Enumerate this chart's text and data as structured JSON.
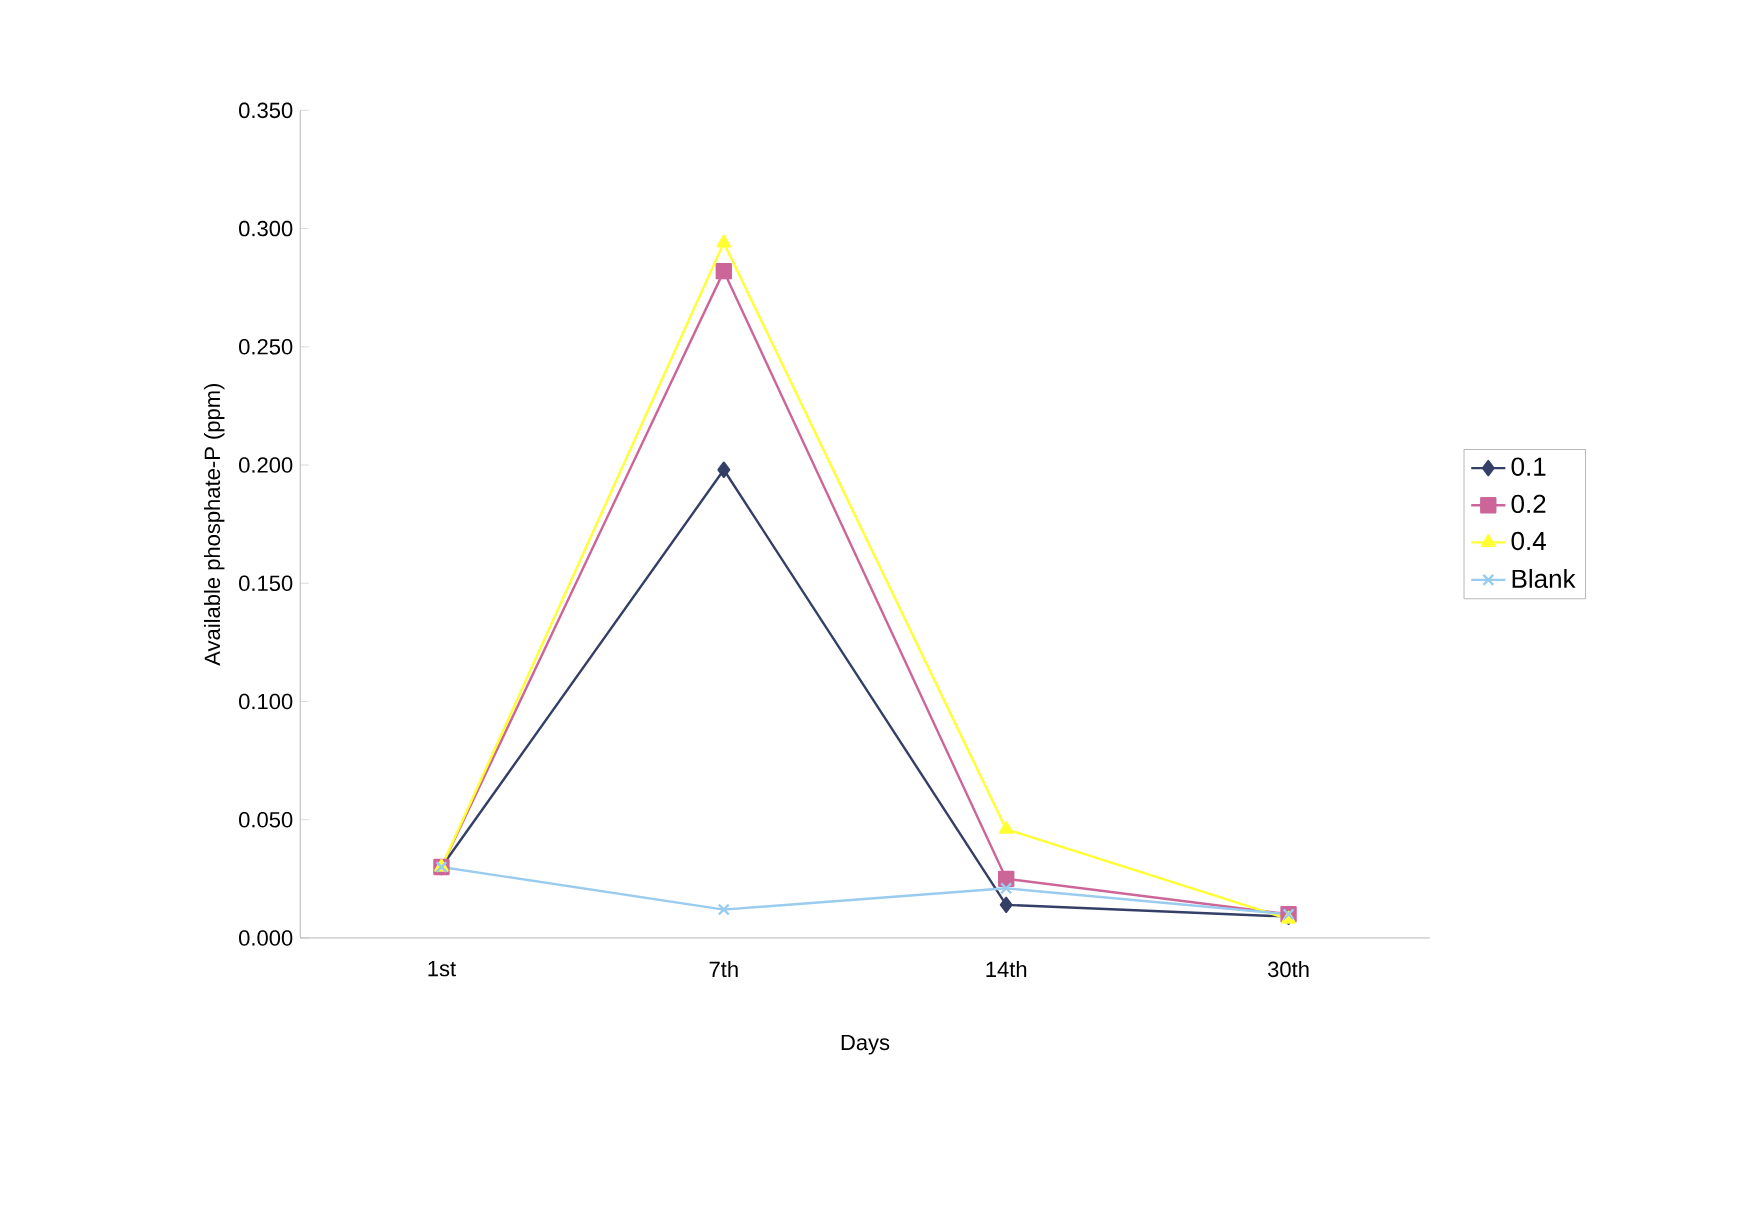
{
  "chart_data": {
    "type": "line",
    "xlabel": "Days",
    "ylabel": "Available phosphate-P (ppm)",
    "categories": [
      "1st",
      "7th",
      "14th",
      "30th"
    ],
    "ylim": [
      0,
      0.35
    ],
    "yticks": [
      {
        "value": 0,
        "label": "0.000"
      },
      {
        "value": 0.05,
        "label": "0.050"
      },
      {
        "value": 0.1,
        "label": "0.100"
      },
      {
        "value": 0.15,
        "label": "0.150"
      },
      {
        "value": 0.2,
        "label": "0.200"
      },
      {
        "value": 0.25,
        "label": "0.250"
      },
      {
        "value": 0.3,
        "label": "0.300"
      },
      {
        "value": 0.35,
        "label": "0.350"
      }
    ],
    "legend": "right",
    "series": [
      {
        "name": "0.1",
        "color": "#333f66",
        "marker": "diamond",
        "values": [
          0.03,
          0.198,
          0.014,
          0.009
        ]
      },
      {
        "name": "0.2",
        "color": "#cc6699",
        "marker": "square",
        "values": [
          0.03,
          0.282,
          0.025,
          0.01
        ]
      },
      {
        "name": "0.4",
        "color": "#ffff33",
        "marker": "triangle",
        "values": [
          0.03,
          0.294,
          0.046,
          0.008
        ]
      },
      {
        "name": "Blank",
        "color": "#99ccee",
        "marker": "cross",
        "values": [
          0.03,
          0.012,
          0.021,
          0.01
        ]
      }
    ]
  }
}
